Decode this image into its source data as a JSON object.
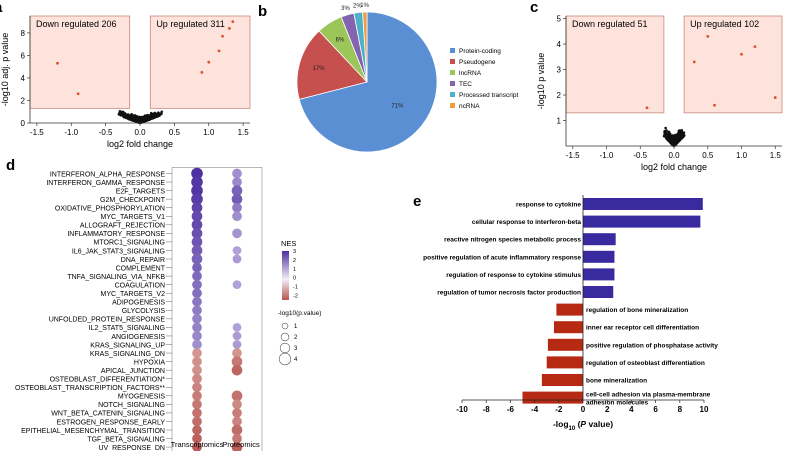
{
  "panel_letters": {
    "a": "a",
    "b": "b",
    "c": "c",
    "d": "d",
    "e": "e"
  },
  "chart_data": [
    {
      "id": "a",
      "type": "scatter",
      "title": "",
      "xlabel": "log2 fold change",
      "ylabel": "-log10 adj. p value",
      "xlim": [
        -1.6,
        1.6
      ],
      "ylim": [
        0,
        9.5
      ],
      "x_ticks": [
        "-1.5",
        "-1.0",
        "-0.5",
        "0.0",
        "0.5",
        "1.0",
        "1.5"
      ],
      "x_tick_values": [
        -1.5,
        -1.0,
        -0.5,
        0.0,
        0.5,
        1.0,
        1.5
      ],
      "y_ticks": [
        "0",
        "2",
        "4",
        "6",
        "8"
      ],
      "y_tick_values": [
        0,
        2,
        4,
        6,
        8
      ],
      "annotations": {
        "down": "Down regulated 206",
        "up": "Up regulated 311"
      },
      "regions": {
        "down": [
          -1.6,
          -0.15,
          1.3,
          9.5
        ],
        "up": [
          0.15,
          1.6,
          1.3,
          9.5
        ]
      },
      "highlight_points": [
        [
          -1.2,
          5.3
        ],
        [
          1.15,
          6.4
        ],
        [
          1.2,
          7.7
        ],
        [
          1.3,
          8.4
        ],
        [
          1.35,
          9.0
        ],
        [
          -0.9,
          2.6
        ],
        [
          1.0,
          5.4
        ],
        [
          0.9,
          4.5
        ]
      ]
    },
    {
      "id": "b",
      "type": "pie",
      "labels": [
        "Protein-coding",
        "Pseudogene",
        "lncRNA",
        "TEC",
        "Processed transcript",
        "ncRNA"
      ],
      "values": [
        71,
        17,
        6,
        3,
        2,
        1
      ],
      "value_labels": [
        "71%",
        "17%",
        "6%",
        "3%",
        "2%",
        "1%"
      ],
      "colors": [
        "#5b8fd4",
        "#c6504d",
        "#9dc65a",
        "#8464b0",
        "#4cb2cc",
        "#f19a42"
      ]
    },
    {
      "id": "c",
      "type": "scatter",
      "xlabel": "log2 fold change",
      "ylabel": "-log10 p value",
      "xlim": [
        -1.6,
        1.6
      ],
      "ylim": [
        0,
        5.1
      ],
      "x_ticks": [
        "-1.5",
        "-1.0",
        "-0.5",
        "0.0",
        "0.5",
        "1.0",
        "1.5"
      ],
      "x_tick_values": [
        -1.5,
        -1.0,
        -0.5,
        0.0,
        0.5,
        1.0,
        1.5
      ],
      "y_ticks": [
        "1",
        "2",
        "3",
        "4",
        "5"
      ],
      "y_tick_values": [
        1,
        2,
        3,
        4,
        5
      ],
      "annotations": {
        "down": "Down regulated 51",
        "up": "Up regulated 102"
      },
      "regions": {
        "down": [
          -1.6,
          -0.15,
          1.3,
          5.1
        ],
        "up": [
          0.15,
          1.6,
          1.3,
          5.1
        ]
      },
      "highlight_points": [
        [
          1.5,
          1.9
        ],
        [
          1.0,
          3.6
        ],
        [
          1.2,
          3.9
        ],
        [
          0.5,
          4.3
        ],
        [
          0.3,
          3.3
        ],
        [
          -0.4,
          1.5
        ],
        [
          0.6,
          1.6
        ]
      ]
    },
    {
      "id": "d",
      "type": "scatter",
      "columns": [
        "Transcriptomics",
        "Proteomics"
      ],
      "rows": [
        "INTERFERON_ALPHA_RESPONSE",
        "INTERFERON_GAMMA_RESPONSE",
        "E2F_TARGETS",
        "G2M_CHECKPOINT",
        "OXIDATIVE_PHOSPHORYLATION",
        "MYC_TARGETS_V1",
        "ALLOGRAFT_REJECTION",
        "INFLAMMATORY_RESPONSE",
        "MTORC1_SIGNALING",
        "IL6_JAK_STAT3_SIGNALING",
        "DNA_REPAIR",
        "COMPLEMENT",
        "TNFA_SIGNALING_VIA_NFKB",
        "COAGULATION",
        "MYC_TARGETS_V2",
        "ADIPOGENESIS",
        "GLYCOLYSIS",
        "UNFOLDED_PROTEIN_RESPONSE",
        "IL2_STAT5_SIGNALING",
        "ANGIOGENESIS",
        "KRAS_SIGNALING_UP",
        "KRAS_SIGNALING_DN",
        "HYPOXIA",
        "APICAL_JUNCTION",
        "OSTEOBLAST_DIFFERENTIATION*",
        "OSTEOBLAST_TRANSCRIPTION_FACTORS**",
        "MYOGENESIS",
        "NOTCH_SIGNALING",
        "WNT_BETA_CATENIN_SIGNALING",
        "ESTROGEN_RESPONSE_EARLY",
        "EPITHELIAL_MESENCHYMAL_TRANSITION",
        "TGF_BETA_SIGNALING",
        "UV_RESPONSE_DN"
      ],
      "nes_transcriptomics": [
        3.0,
        2.9,
        2.9,
        2.8,
        2.7,
        2.6,
        2.6,
        2.5,
        2.4,
        2.3,
        2.2,
        2.2,
        2.1,
        2.0,
        2.0,
        1.9,
        1.8,
        1.7,
        1.7,
        1.6,
        1.5,
        -1.4,
        -1.5,
        -1.5,
        -1.6,
        -1.7,
        -1.8,
        -1.9,
        -2.0,
        -2.1,
        -2.2,
        -2.3,
        -2.4
      ],
      "size_transcriptomics": [
        4,
        4,
        4,
        4,
        3.5,
        3.5,
        3.5,
        3.5,
        3.5,
        3.5,
        3.5,
        3,
        3,
        3,
        3,
        3,
        3,
        3,
        3,
        3,
        3,
        3,
        3,
        3,
        3,
        3,
        3,
        3,
        3,
        3,
        3,
        3,
        3
      ],
      "nes_proteomics": [
        1.5,
        1.6,
        2.2,
        2.3,
        1.8,
        1.5,
        null,
        1.4,
        null,
        1.2,
        1.3,
        null,
        null,
        1.2,
        null,
        null,
        null,
        null,
        1.2,
        1.3,
        1.3,
        -1.4,
        -1.9,
        -2.2,
        null,
        null,
        -2.0,
        -1.6,
        -1.8,
        -1.7,
        -2.1,
        -1.9,
        -2.3
      ],
      "size_proteomics": [
        3,
        3,
        3.5,
        3.5,
        3,
        3,
        null,
        3,
        null,
        2.5,
        2.5,
        null,
        null,
        2.5,
        null,
        null,
        null,
        null,
        2.5,
        2.5,
        2.5,
        3,
        3.5,
        3.5,
        null,
        null,
        3.5,
        3,
        3,
        3,
        3.5,
        3,
        3.5
      ],
      "nes_legend": {
        "title": "NES",
        "ticks": [
          "3",
          "2",
          "1",
          "0",
          "-1",
          "-2"
        ],
        "tick_values": [
          3,
          2,
          1,
          0,
          -1,
          -2
        ]
      },
      "size_legend": {
        "title": "-log10(p.value)",
        "ticks": [
          "1",
          "2",
          "3",
          "4"
        ],
        "tick_values": [
          1,
          2,
          3,
          4
        ]
      }
    },
    {
      "id": "e",
      "type": "bar",
      "orientation": "horizontal",
      "categories": [
        "response to cytokine",
        "cellular response to interferon-beta",
        "reactive nitrogen species metabolic process",
        "positive regulation of acute inflammatory response",
        "regulation of response to cytokine stimulus",
        "regulation of tumor necrosis factor production",
        "regulation of bone mineralization",
        "inner ear receptor cell differentiation",
        "positive regulation of phosphatase activity",
        "regulation of osteoblast differentiation",
        "bone mineralization",
        "cell-cell adhesion via plasma-membrane adhesion molecules"
      ],
      "category_lines": [
        [
          "response to cytokine"
        ],
        [
          "cellular response to interferon-beta"
        ],
        [
          "reactive nitrogen species metabolic process"
        ],
        [
          "positive regulation of acute inflammatory response"
        ],
        [
          "regulation of response to cytokine stimulus"
        ],
        [
          "regulation of tumor necrosis factor production"
        ],
        [
          "regulation of bone mineralization"
        ],
        [
          "inner ear receptor cell differentiation"
        ],
        [
          "positive regulation of phosphatase activity"
        ],
        [
          "regulation of osteoblast differentiation"
        ],
        [
          "bone mineralization"
        ],
        [
          "cell-cell adhesion via plasma-membrane",
          "adhesion molecules"
        ]
      ],
      "values": [
        9.9,
        9.7,
        2.7,
        2.6,
        2.6,
        2.5,
        -2.2,
        -2.4,
        -2.9,
        -3.0,
        -3.4,
        -5.0
      ],
      "xlim": [
        -10,
        10
      ],
      "x_ticks": [
        "-10",
        "-8",
        "-6",
        "-4",
        "-2",
        "0",
        "2",
        "4",
        "6",
        "8",
        "10"
      ],
      "x_tick_values": [
        -10,
        -8,
        -6,
        -4,
        -2,
        0,
        2,
        4,
        6,
        8,
        10
      ],
      "xlabel_main": "-log",
      "xlabel_sub": "10",
      "xlabel_rest": " (",
      "xlabel_ital": "P",
      "xlabel_end": " value)",
      "colors": {
        "positive": "#3a2aa0",
        "negative": "#b62a14"
      }
    }
  ],
  "colors": {
    "region_fill": "#fde3dc",
    "region_stroke": "#c8887c",
    "sig_point": "#e0502c",
    "ns_point": "#111111"
  }
}
